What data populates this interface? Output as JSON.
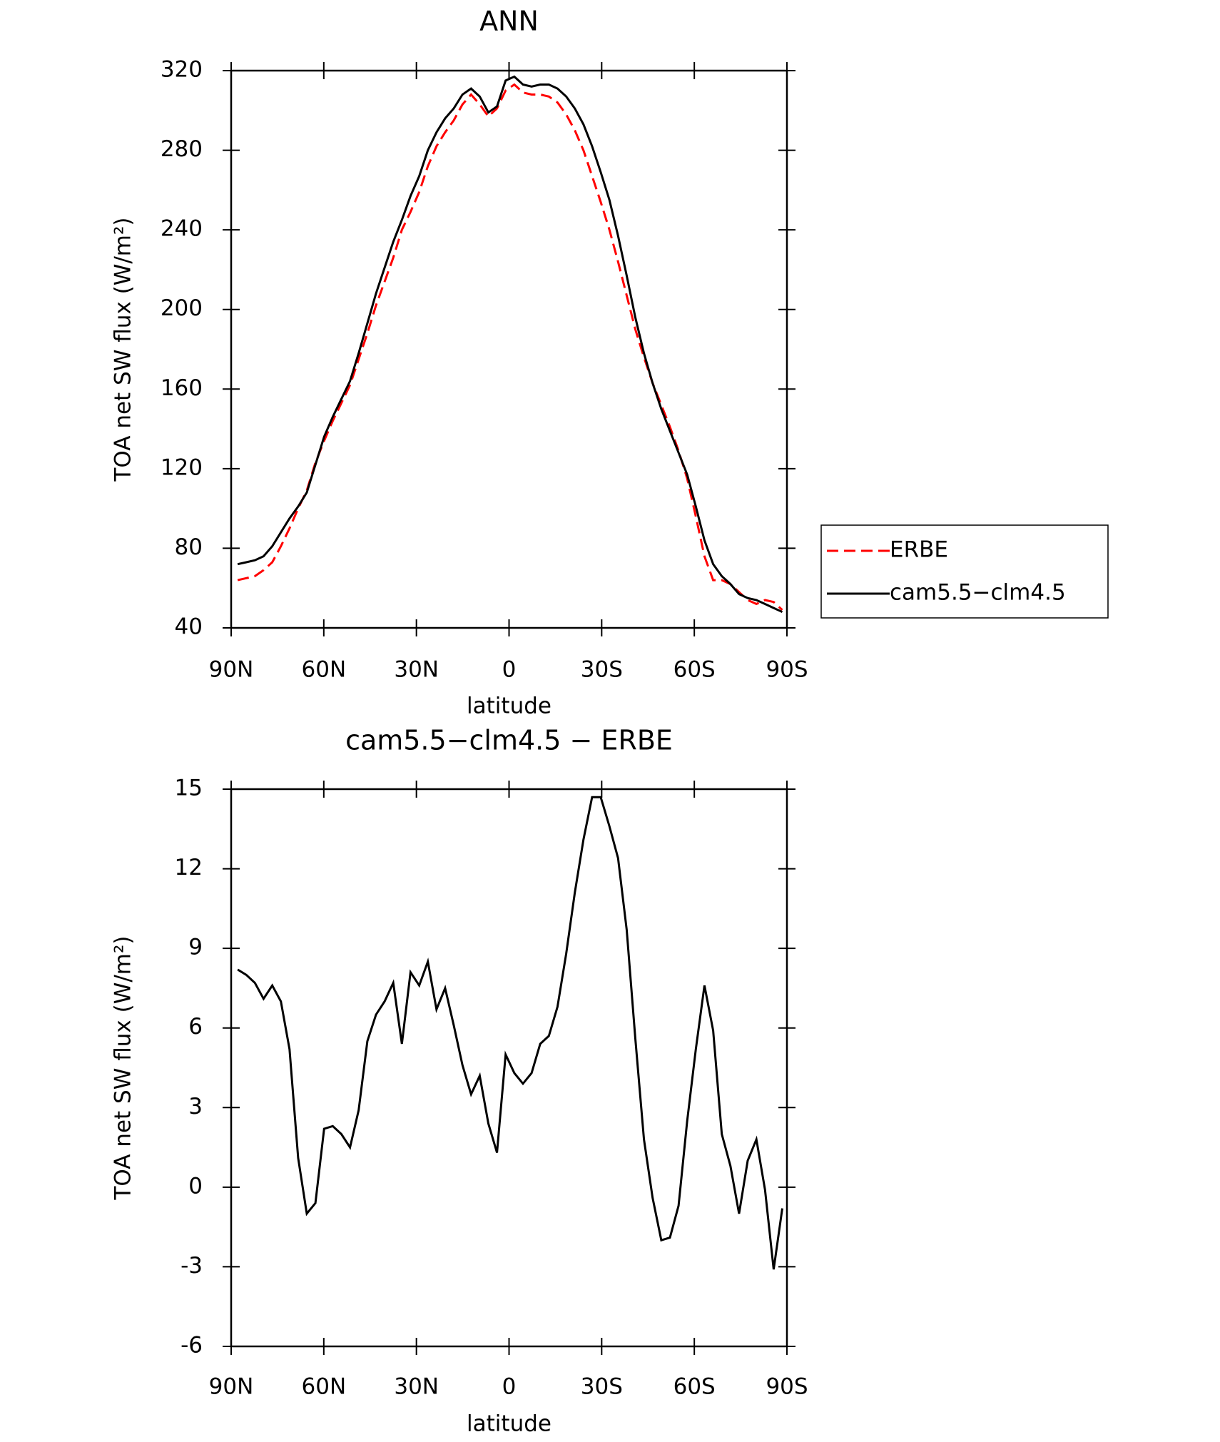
{
  "chart_data": [
    {
      "type": "line",
      "title": "ANN",
      "xlabel": "latitude",
      "ylabel": "TOA net SW flux (W/m²)",
      "x": [
        87.9,
        85.1,
        82.3,
        79.5,
        76.7,
        73.9,
        71.1,
        68.3,
        65.5,
        62.7,
        59.9,
        57.1,
        54.3,
        51.5,
        48.7,
        45.9,
        43.1,
        40.3,
        37.5,
        34.7,
        31.9,
        29.1,
        26.3,
        23.5,
        20.7,
        17.9,
        15.1,
        12.3,
        9.5,
        6.7,
        3.9,
        1.1,
        -1.7,
        -4.5,
        -7.3,
        -10.1,
        -12.9,
        -15.7,
        -18.5,
        -21.3,
        -24.1,
        -26.9,
        -29.7,
        -32.5,
        -35.3,
        -38.1,
        -40.9,
        -43.7,
        -46.5,
        -49.3,
        -52.1,
        -54.9,
        -57.7,
        -60.5,
        -63.3,
        -66.1,
        -68.9,
        -71.7,
        -74.5,
        -77.3,
        -80.1,
        -82.9,
        -85.7,
        -88.5
      ],
      "series": [
        {
          "name": "ERBE",
          "color": "#ff0000",
          "dash": true,
          "values": [
            64,
            65,
            66,
            69,
            73,
            81,
            90,
            100,
            109,
            123,
            134,
            144,
            153,
            162,
            175,
            188,
            202,
            214,
            226,
            240,
            249,
            259,
            272,
            282,
            289,
            295,
            303,
            308,
            303,
            297,
            301,
            310,
            313,
            309,
            308,
            308,
            307,
            304,
            298,
            290,
            280,
            267,
            254,
            240,
            224,
            207,
            190,
            176,
            163,
            152,
            141,
            129,
            115,
            96,
            76,
            64,
            64,
            62,
            58,
            54,
            52,
            54,
            53,
            49
          ]
        },
        {
          "name": "cam5.5−clm4.5",
          "color": "#000000",
          "dash": false,
          "values": [
            72,
            73,
            74,
            76,
            81,
            88,
            95,
            101,
            108,
            122,
            136,
            146,
            155,
            164,
            178,
            193,
            208,
            221,
            234,
            245,
            257,
            267,
            280,
            289,
            296,
            301,
            308,
            311,
            307,
            299,
            302,
            315,
            317,
            313,
            312,
            313,
            313,
            311,
            307,
            301,
            293,
            282,
            269,
            255,
            237,
            217,
            196,
            178,
            163,
            150,
            139,
            128,
            117,
            101,
            84,
            72,
            66,
            62,
            57,
            55,
            54,
            52,
            50,
            48
          ]
        }
      ],
      "xlim": [
        90,
        -90
      ],
      "xticks": [
        {
          "value": 90,
          "label": "90N"
        },
        {
          "value": 60,
          "label": "60N"
        },
        {
          "value": 30,
          "label": "30N"
        },
        0,
        {
          "value": -30,
          "label": "30S"
        },
        {
          "value": -60,
          "label": "60S"
        },
        {
          "value": -90,
          "label": "90S"
        }
      ],
      "ylim": [
        40,
        320
      ],
      "yticks": [
        40,
        80,
        120,
        160,
        200,
        240,
        280,
        320
      ],
      "legend": "outside-right"
    },
    {
      "type": "line",
      "title": "cam5.5−clm4.5 − ERBE",
      "xlabel": "latitude",
      "ylabel": "TOA net SW flux (W/m²)",
      "x": [
        87.9,
        85.1,
        82.3,
        79.5,
        76.7,
        73.9,
        71.1,
        68.3,
        65.5,
        62.7,
        59.9,
        57.1,
        54.3,
        51.5,
        48.7,
        45.9,
        43.1,
        40.3,
        37.5,
        34.7,
        31.9,
        29.1,
        26.3,
        23.5,
        20.7,
        17.9,
        15.1,
        12.3,
        9.5,
        6.7,
        3.9,
        1.1,
        -1.7,
        -4.5,
        -7.3,
        -10.1,
        -12.9,
        -15.7,
        -18.5,
        -21.3,
        -24.1,
        -26.9,
        -29.7,
        -32.5,
        -35.3,
        -38.1,
        -40.9,
        -43.7,
        -46.5,
        -49.3,
        -52.1,
        -54.9,
        -57.7,
        -60.5,
        -63.3,
        -66.1,
        -68.9,
        -71.7,
        -74.5,
        -77.3,
        -80.1,
        -82.9,
        -85.7,
        -88.5
      ],
      "color": "#000000",
      "values": [
        8.2,
        8.0,
        7.7,
        7.1,
        7.6,
        7.0,
        5.2,
        1.1,
        -1.0,
        -0.6,
        2.2,
        2.3,
        2.0,
        1.5,
        2.9,
        5.5,
        6.5,
        7.0,
        7.7,
        5.4,
        8.1,
        7.6,
        8.5,
        6.7,
        7.5,
        6.1,
        4.6,
        3.5,
        4.2,
        2.4,
        1.3,
        5.0,
        4.3,
        3.9,
        4.3,
        5.4,
        5.7,
        6.8,
        8.8,
        11.1,
        13.1,
        14.7,
        14.7,
        13.6,
        12.4,
        9.7,
        5.6,
        1.8,
        -0.4,
        -2.0,
        -1.9,
        -0.7,
        2.5,
        5.2,
        7.6,
        5.9,
        2.0,
        0.8,
        -1.0,
        1.0,
        1.8,
        -0.1,
        -3.1,
        -0.8
      ],
      "xlim": [
        90,
        -90
      ],
      "xticks": [
        {
          "value": 90,
          "label": "90N"
        },
        {
          "value": 60,
          "label": "60N"
        },
        {
          "value": 30,
          "label": "30N"
        },
        0,
        {
          "value": -30,
          "label": "30S"
        },
        {
          "value": -60,
          "label": "60S"
        },
        {
          "value": -90,
          "label": "90S"
        }
      ],
      "ylim": [
        -6,
        15
      ],
      "yticks": [
        -6,
        -3,
        0,
        3,
        6,
        9,
        12,
        15
      ]
    }
  ]
}
